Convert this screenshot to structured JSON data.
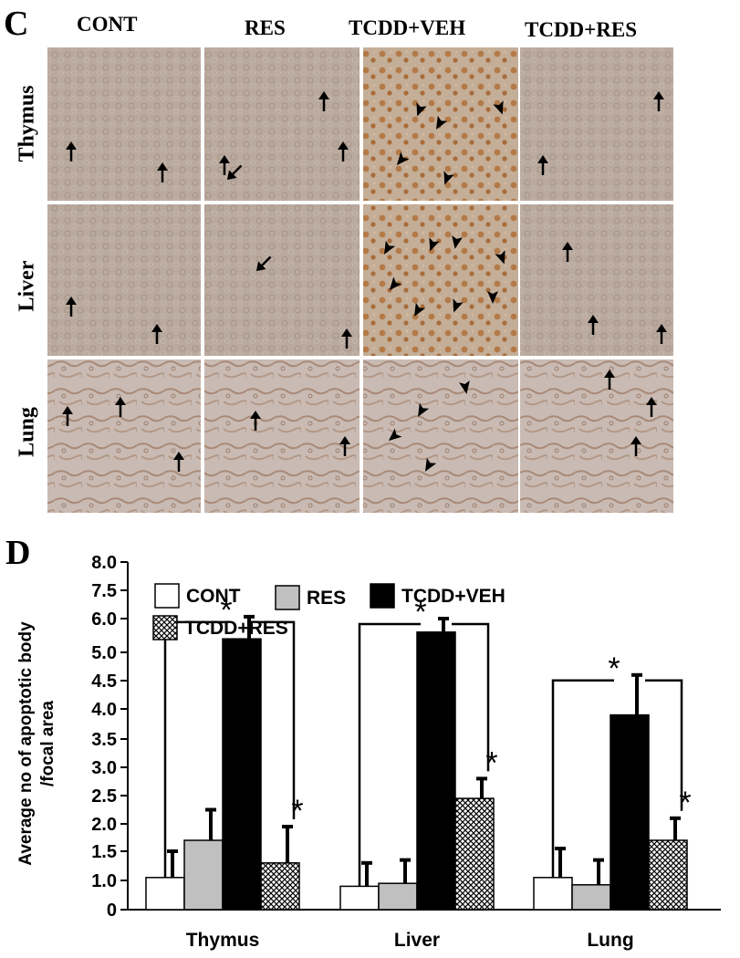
{
  "panel_c": {
    "letter": "C",
    "columns": [
      "CONT",
      "RES",
      "TCDD+VEH",
      "TCDD+RES"
    ],
    "rows": [
      "Thymus",
      "Liver",
      "Lung"
    ],
    "image_colors": {
      "cont_base": "#b9a69a",
      "cont_light": "#cfc0b6",
      "veh_base": "#c2a98f",
      "veh_cells": "#b5773f",
      "outline": "#9a8070"
    },
    "markers": {
      "arrow_icon": "up-arrow",
      "arrowhead_icon": "triangle-arrowhead"
    }
  },
  "panel_d": {
    "letter": "D"
  },
  "chart_data": {
    "type": "bar",
    "title": "",
    "xlabel": "",
    "ylabel": "Average no of apoptotic body /focal area",
    "ylabel_lines": [
      "Average no of apoptotic body",
      "/focal area"
    ],
    "ylim": [
      0,
      8.0
    ],
    "yticks": [
      "0",
      "1.0",
      "1.5",
      "2.0",
      "2.5",
      "3.0",
      "3.5",
      "4.0",
      "4.5",
      "5.0",
      "6.0",
      "7.5",
      "8.0"
    ],
    "ytick_values": [
      0,
      1.0,
      1.5,
      2.0,
      2.5,
      3.0,
      3.5,
      4.0,
      4.5,
      5.0,
      6.0,
      7.5,
      8.0
    ],
    "categories": [
      "Thymus",
      "Liver",
      "Lung"
    ],
    "series": [
      {
        "name": "CONT",
        "fill": "#ffffff",
        "values": [
          1.05,
          0.8,
          1.05
        ],
        "errors": [
          0.45,
          0.5,
          0.5
        ]
      },
      {
        "name": "RES",
        "fill": "#c0c0c0",
        "values": [
          1.7,
          0.9,
          0.85
        ],
        "errors": [
          0.55,
          0.45,
          0.5
        ]
      },
      {
        "name": "TCDD+VEH",
        "fill": "#000000",
        "values": [
          5.4,
          5.6,
          3.9
        ],
        "errors": [
          0.7,
          0.4,
          0.7
        ]
      },
      {
        "name": "TCDD+RES",
        "fill": "hatch",
        "values": [
          1.3,
          2.45,
          1.7
        ],
        "errors": [
          0.65,
          0.35,
          0.4
        ]
      }
    ],
    "significance_marks": [
      "*",
      "*",
      "*",
      "*",
      "*",
      "*"
    ],
    "legend_position": "top-left"
  }
}
